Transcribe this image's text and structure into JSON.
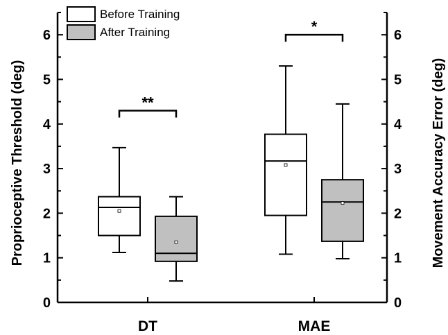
{
  "chart_data": {
    "type": "box",
    "ylim": [
      0,
      6.5
    ],
    "y_ticks": [
      0,
      1,
      2,
      3,
      4,
      5,
      6
    ],
    "ylabel_left": "Proprioceptive Threshold (deg)",
    "ylabel_right": "Movement Accuracy Error (deg)",
    "categories": [
      "DT",
      "MAE"
    ],
    "legend": {
      "placement": "top-left",
      "entries": [
        {
          "label": "Before Training",
          "color": "#ffffff"
        },
        {
          "label": "After Training",
          "color": "#c0c0c0"
        }
      ]
    },
    "series": [
      {
        "name": "Before Training",
        "color": "#ffffff",
        "boxes": [
          {
            "category": "DT",
            "whisker_low": 1.12,
            "q1": 1.5,
            "median": 2.13,
            "q3": 2.37,
            "whisker_high": 3.47,
            "mean": 2.05
          },
          {
            "category": "MAE",
            "whisker_low": 1.08,
            "q1": 1.95,
            "median": 3.17,
            "q3": 3.77,
            "whisker_high": 5.3,
            "mean": 3.08
          }
        ]
      },
      {
        "name": "After Training",
        "color": "#c0c0c0",
        "boxes": [
          {
            "category": "DT",
            "whisker_low": 0.48,
            "q1": 0.92,
            "median": 1.1,
            "q3": 1.93,
            "whisker_high": 2.37,
            "mean": 1.35
          },
          {
            "category": "MAE",
            "whisker_low": 0.98,
            "q1": 1.37,
            "median": 2.25,
            "q3": 2.75,
            "whisker_high": 4.45,
            "mean": 2.23
          }
        ]
      }
    ],
    "significance": [
      {
        "category": "DT",
        "label": "**",
        "y": 4.3
      },
      {
        "category": "MAE",
        "label": "*",
        "y": 6.0
      }
    ],
    "grid": false
  }
}
